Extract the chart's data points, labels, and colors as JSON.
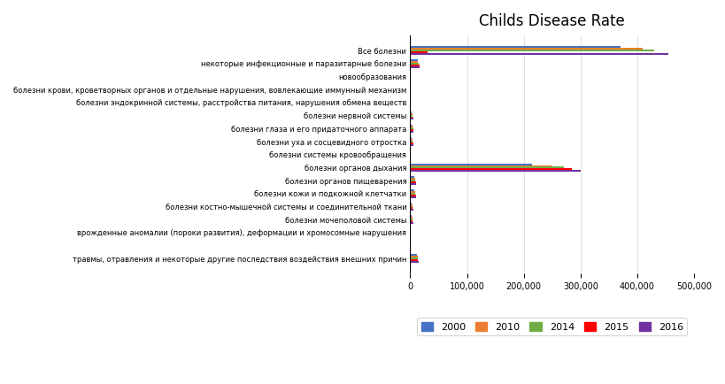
{
  "title": "Childs Disease Rate",
  "categories": [
    "Все болезни",
    "некоторые инфекционные и паразитарные болезни",
    "новообразования",
    "болезни крови, кроветворных органов и отдельные нарушения, вовлекающие иммунный механизм",
    "болезни эндокринной системы, расстройства питания, нарушения обмена веществ",
    "болезни нервной системы",
    "болезни глаза и его придаточного аппарата",
    "болезни уха и сосцевидного отростка",
    "болезни системы кровообращения",
    "болезни органов дыхания",
    "болезни органов пищеварения",
    "болезни кожи и подкожной клетчатки",
    "болезни костно-мышечной системы и соединительной ткани",
    "болезни мочеполовой системы",
    "врожденные аномалии (пороки развития), деформации и хромосомные нарушения",
    "",
    "травмы, отравления и некоторые другие последствия воздействия внешних причин"
  ],
  "years": [
    "2000",
    "2010",
    "2014",
    "2015",
    "2016"
  ],
  "colors": [
    "#4472C4",
    "#ED7D31",
    "#70AD47",
    "#FF0000",
    "#7030A0"
  ],
  "data": {
    "2000": [
      370000,
      13000,
      300,
      200,
      300,
      2500,
      3500,
      3000,
      200,
      215000,
      6500,
      7000,
      2500,
      2500,
      300,
      0,
      12000
    ],
    "2010": [
      410000,
      14000,
      300,
      200,
      300,
      3500,
      4500,
      4000,
      200,
      250000,
      8000,
      8500,
      3500,
      3500,
      300,
      0,
      13000
    ],
    "2014": [
      430000,
      15500,
      300,
      200,
      300,
      4000,
      5000,
      4500,
      200,
      270000,
      9000,
      9000,
      4000,
      4000,
      300,
      0,
      13500
    ],
    "2015": [
      30000,
      16000,
      300,
      200,
      300,
      4500,
      5500,
      5000,
      200,
      285000,
      9500,
      9500,
      4500,
      4500,
      300,
      0,
      14000
    ],
    "2016": [
      455000,
      17000,
      300,
      200,
      300,
      5000,
      6000,
      5500,
      200,
      300000,
      10000,
      10000,
      5000,
      5000,
      300,
      0,
      14500
    ]
  },
  "xlim": [
    0,
    500000
  ],
  "xticks": [
    0,
    100000,
    200000,
    300000,
    400000,
    500000
  ],
  "bar_height": 0.13,
  "legend_labels": [
    "2000",
    "2010",
    "2014",
    "2015",
    "2016"
  ],
  "figsize": [
    8.19,
    4.34
  ],
  "dpi": 100
}
